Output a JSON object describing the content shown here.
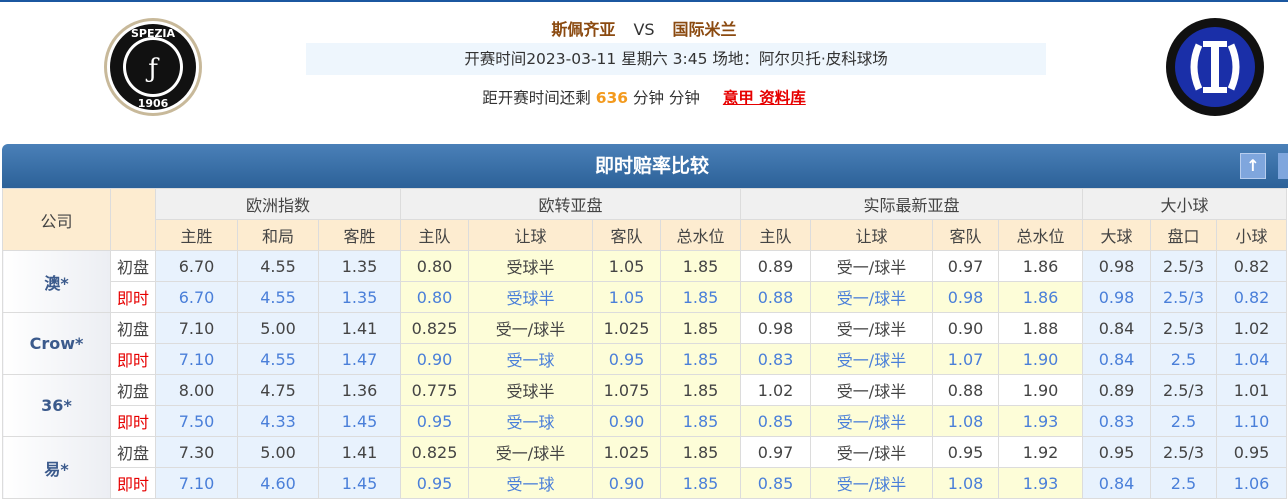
{
  "match": {
    "home": "斯佩齐亚",
    "vs": "VS",
    "away": "国际米兰",
    "info": "开赛时间2023-03-11 星期六 3:45  场地：阿尔贝托·皮科球场",
    "countdown_prefix": "距开赛时间还剩",
    "countdown_value": "636",
    "countdown_suffix": "分钟 分钟",
    "league_link": "意甲 资料库"
  },
  "logos": {
    "home_text_top": "SPEZIA",
    "home_text_bottom": "1906",
    "home_icon": "spezia-crest",
    "away_icon": "inter-crest"
  },
  "panel": {
    "title": "即时赔率比较",
    "up_icon": "arrow-up-icon"
  },
  "colors": {
    "header_bar": "#2c6198",
    "realtime_label": "#e60000",
    "realtime_value": "#4a7fd9",
    "title_team": "#8b4a10",
    "countdown": "#f39a1e"
  },
  "headers": {
    "company": "公司",
    "groups": [
      "欧洲指数",
      "欧转亚盘",
      "实际最新亚盘",
      "大小球"
    ],
    "columns": [
      "主胜",
      "和局",
      "客胜",
      "主队",
      "让球",
      "客队",
      "总水位",
      "主队",
      "让球",
      "客队",
      "总水位",
      "大球",
      "盘口",
      "小球"
    ]
  },
  "labels": {
    "initial": "初盘",
    "realtime": "即时"
  },
  "rows": [
    {
      "company": "澳*",
      "initial": [
        "6.70",
        "4.55",
        "1.35",
        "0.80",
        "受球半",
        "1.05",
        "1.85",
        "0.89",
        "受一/球半",
        "0.97",
        "1.86",
        "0.98",
        "2.5/3",
        "0.82"
      ],
      "realtime": [
        "6.70",
        "4.55",
        "1.35",
        "0.80",
        "受球半",
        "1.05",
        "1.85",
        "0.88",
        "受一/球半",
        "0.98",
        "1.86",
        "0.98",
        "2.5/3",
        "0.82"
      ]
    },
    {
      "company": "Crow*",
      "initial": [
        "7.10",
        "5.00",
        "1.41",
        "0.825",
        "受一/球半",
        "1.025",
        "1.85",
        "0.98",
        "受一/球半",
        "0.90",
        "1.88",
        "0.84",
        "2.5/3",
        "1.02"
      ],
      "realtime": [
        "7.10",
        "4.55",
        "1.47",
        "0.90",
        "受一球",
        "0.95",
        "1.85",
        "0.83",
        "受一/球半",
        "1.07",
        "1.90",
        "0.84",
        "2.5",
        "1.04"
      ]
    },
    {
      "company": "36*",
      "initial": [
        "8.00",
        "4.75",
        "1.36",
        "0.775",
        "受球半",
        "1.075",
        "1.85",
        "1.02",
        "受一/球半",
        "0.88",
        "1.90",
        "0.89",
        "2.5/3",
        "1.01"
      ],
      "realtime": [
        "7.50",
        "4.33",
        "1.45",
        "0.95",
        "受一球",
        "0.90",
        "1.85",
        "0.85",
        "受一/球半",
        "1.08",
        "1.93",
        "0.83",
        "2.5",
        "1.10"
      ]
    },
    {
      "company": "易*",
      "initial": [
        "7.30",
        "5.00",
        "1.41",
        "0.825",
        "受一/球半",
        "1.025",
        "1.85",
        "0.97",
        "受一/球半",
        "0.95",
        "1.92",
        "0.95",
        "2.5/3",
        "0.95"
      ],
      "realtime": [
        "7.10",
        "4.60",
        "1.45",
        "0.95",
        "受一球",
        "0.90",
        "1.85",
        "0.85",
        "受一/球半",
        "1.08",
        "1.93",
        "0.84",
        "2.5",
        "1.06"
      ]
    }
  ]
}
